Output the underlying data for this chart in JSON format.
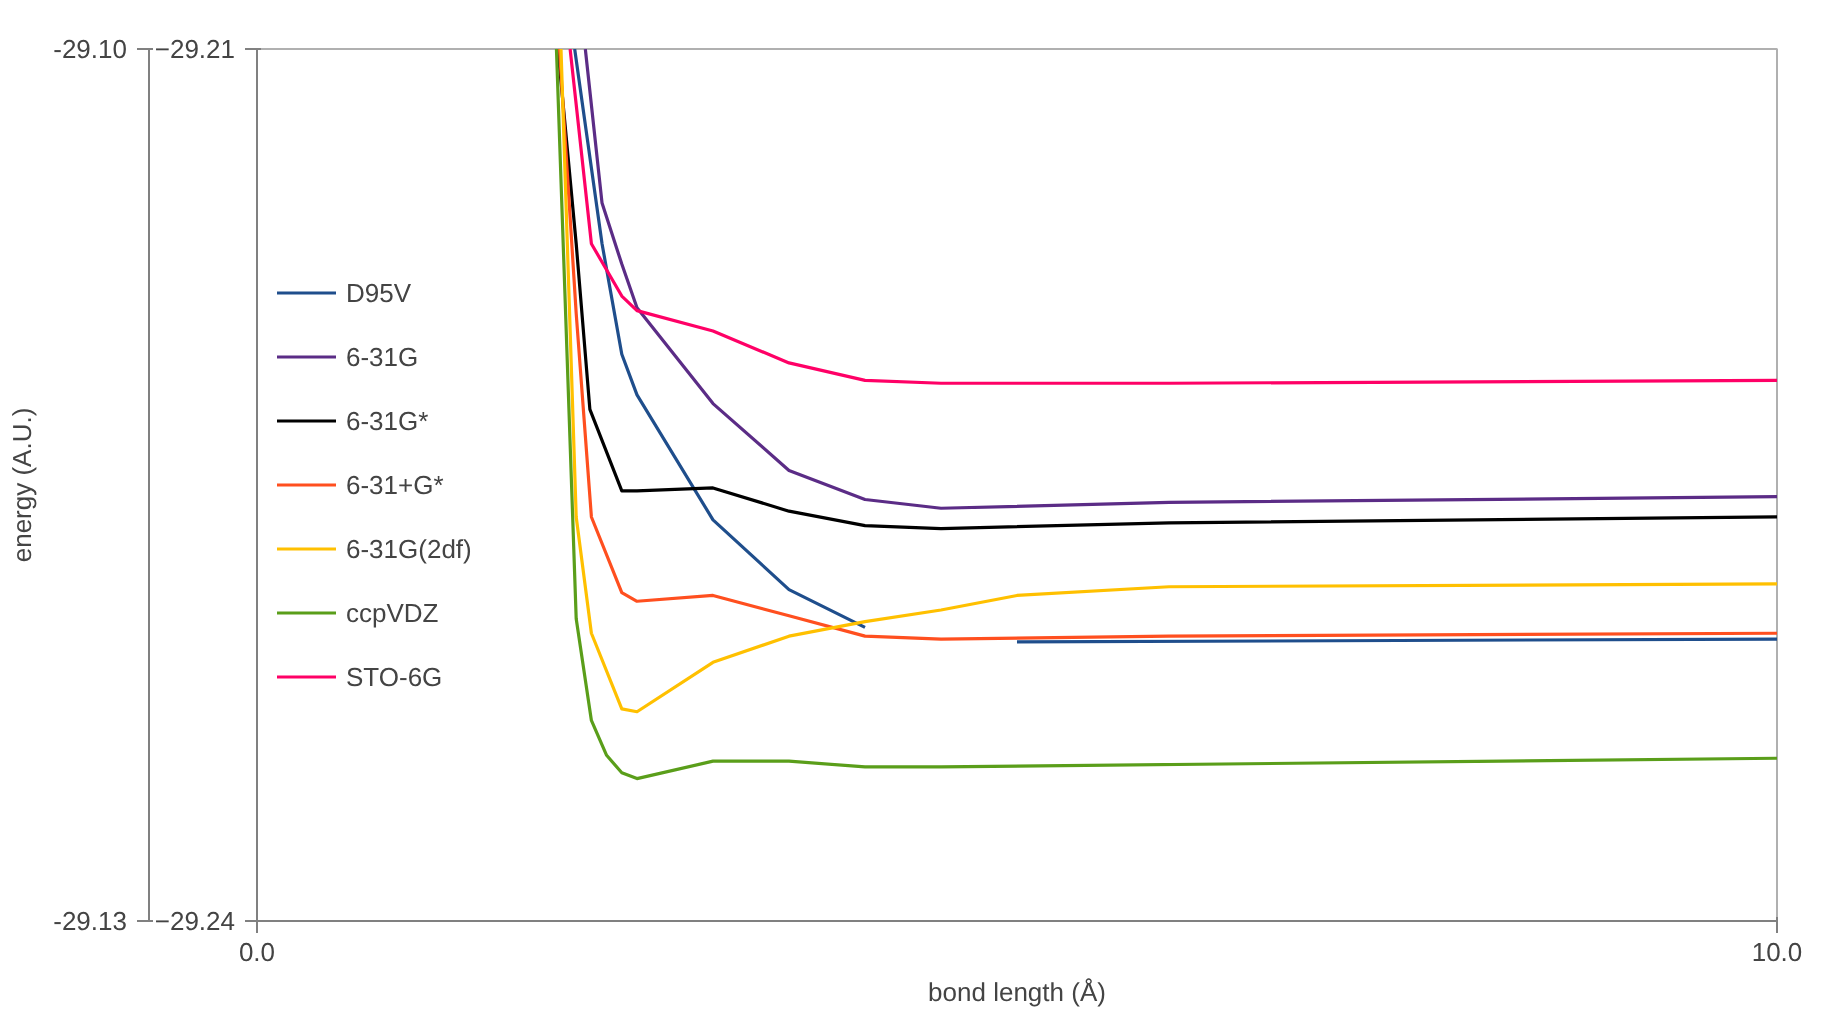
{
  "chart_data": {
    "type": "line",
    "xlabel": "bond length (Å)",
    "y2label": "energy (A.U.)",
    "xlim": [
      0,
      10
    ],
    "xticks": [
      {
        "value": 0,
        "label": "0.0"
      },
      {
        "value": 10,
        "label": "10.0"
      }
    ],
    "ylim": [
      -29.24,
      -29.21
    ],
    "yticks": [
      -29.24,
      -29.21
    ],
    "y2lim": [
      -29.13,
      -29.1
    ],
    "y2ticks": [
      {
        "value": -29.13,
        "label": "-29.13"
      },
      {
        "value": -29.1,
        "label": "-29.10"
      }
    ],
    "legend": "left",
    "line_style": "solid",
    "marker": "none",
    "series": [
      {
        "name": "D95V",
        "color": "#1f4e8c",
        "x": [
          2.09,
          2.27,
          2.4,
          2.5,
          3.0,
          3.5,
          4.0,
          4.5,
          5.0,
          10.0
        ],
        "values": [
          -29.21,
          -29.2167,
          -29.2205,
          -29.2219,
          -29.2262,
          -29.2286,
          -29.2299,
          null,
          -29.2304,
          -29.2303
        ]
      },
      {
        "name": "6-31G",
        "color": "#5b2c86",
        "x": [
          2.16,
          2.27,
          2.4,
          2.5,
          3.0,
          3.5,
          4.0,
          4.5,
          6.0,
          10.0
        ],
        "values": [
          -29.21,
          -29.2153,
          -29.2174,
          -29.2189,
          -29.2222,
          -29.2245,
          -29.2255,
          -29.2258,
          -29.2256,
          -29.2254
        ]
      },
      {
        "name": "6-31G*",
        "color": "#000000",
        "x": [
          1.98,
          2.1,
          2.19,
          2.4,
          2.5,
          3.0,
          3.5,
          4.0,
          4.5,
          6.0,
          10.0
        ],
        "values": [
          -29.21,
          -29.2167,
          -29.2224,
          -29.2252,
          -29.2252,
          -29.2251,
          -29.2259,
          -29.2264,
          -29.2265,
          -29.2263,
          -29.2261
        ]
      },
      {
        "name": "6-31+G*",
        "color": "#ff4f1f",
        "x": [
          1.99,
          2.1,
          2.2,
          2.4,
          2.5,
          3.0,
          3.5,
          4.0,
          4.5,
          6.0,
          10.0
        ],
        "values": [
          -29.21,
          -29.2191,
          -29.2261,
          -29.2287,
          -29.229,
          -29.2288,
          -29.2295,
          -29.2302,
          -29.2303,
          -29.2302,
          -29.2301
        ]
      },
      {
        "name": "6-31G(2df)",
        "color": "#ffc000",
        "x": [
          2.0,
          2.1,
          2.2,
          2.4,
          2.5,
          3.0,
          3.5,
          4.0,
          4.5,
          5.0,
          6.0,
          10.0
        ],
        "values": [
          -29.21,
          -29.2261,
          -29.2301,
          -29.2327,
          -29.2328,
          -29.2311,
          -29.2302,
          -29.2297,
          -29.2293,
          -29.2288,
          -29.2285,
          -29.2284
        ]
      },
      {
        "name": "ccpVDZ",
        "color": "#5a9e1a",
        "x": [
          1.97,
          2.1,
          2.2,
          2.3,
          2.4,
          2.5,
          3.0,
          3.5,
          4.0,
          4.5,
          10.0
        ],
        "values": [
          -29.21,
          -29.2296,
          -29.2331,
          -29.2343,
          -29.2349,
          -29.2351,
          -29.2345,
          -29.2345,
          -29.2347,
          -29.2347,
          -29.2344
        ]
      },
      {
        "name": "STO-6G",
        "color": "#ff0066",
        "x": [
          2.06,
          2.2,
          2.4,
          2.5,
          3.0,
          3.5,
          4.0,
          4.5,
          6.0,
          10.0
        ],
        "values": [
          -29.21,
          -29.2167,
          -29.2185,
          -29.219,
          -29.2197,
          -29.2208,
          -29.2214,
          -29.2215,
          -29.2215,
          -29.2214
        ]
      }
    ]
  }
}
